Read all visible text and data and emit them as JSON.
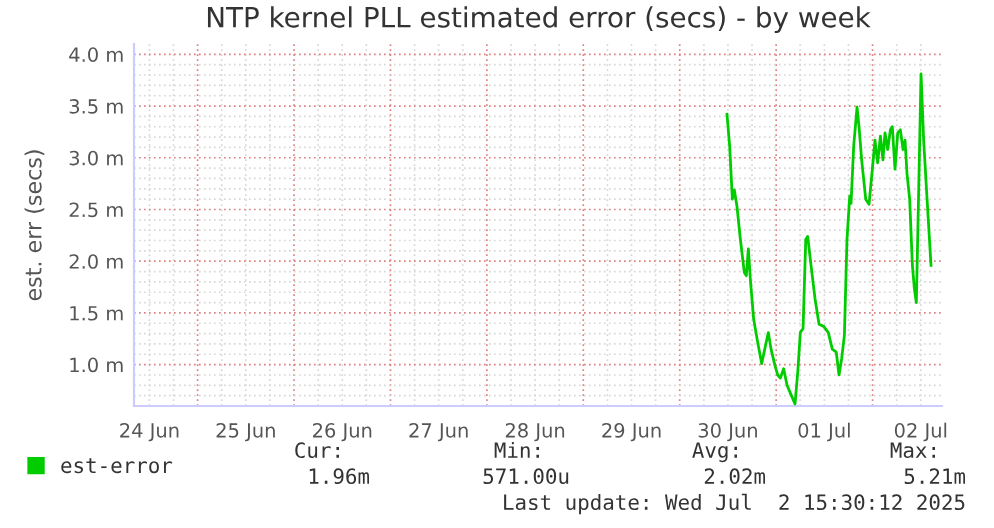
{
  "chart_data": {
    "type": "line",
    "title": "NTP kernel PLL estimated error (secs) - by week",
    "ylabel": "est. err (secs)",
    "xlim": [
      "2025-06-24T08:10",
      "2025-07-02T17:17"
    ],
    "ylim": [
      0.6,
      4.1
    ],
    "xticks": [
      {
        "value": "2025-06-24T12:00",
        "label": "24 Jun"
      },
      {
        "value": "2025-06-25T12:00",
        "label": "25 Jun"
      },
      {
        "value": "2025-06-26T12:00",
        "label": "26 Jun"
      },
      {
        "value": "2025-06-27T12:00",
        "label": "27 Jun"
      },
      {
        "value": "2025-06-28T12:00",
        "label": "28 Jun"
      },
      {
        "value": "2025-06-29T12:00",
        "label": "29 Jun"
      },
      {
        "value": "2025-06-30T12:00",
        "label": "30 Jun"
      },
      {
        "value": "2025-07-01T12:00",
        "label": "01 Jul"
      },
      {
        "value": "2025-07-02T12:00",
        "label": "02 Jul"
      }
    ],
    "yticks": [
      {
        "value": 1.0,
        "label": "1.0 m"
      },
      {
        "value": 1.5,
        "label": "1.5 m"
      },
      {
        "value": 2.0,
        "label": "2.0 m"
      },
      {
        "value": 2.5,
        "label": "2.5 m"
      },
      {
        "value": 3.0,
        "label": "3.0 m"
      },
      {
        "value": 3.5,
        "label": "3.5 m"
      },
      {
        "value": 4.0,
        "label": "4.0 m"
      }
    ],
    "grid": true,
    "legend": "bottom left",
    "marker": "none",
    "line_style": "solid",
    "series": [
      {
        "name": "est-error",
        "color": "#00cc00",
        "x": [
          "2025-06-30T11:46",
          "2025-06-30T12:26",
          "2025-06-30T13:06",
          "2025-06-30T13:35",
          "2025-06-30T14:15",
          "2025-06-30T15:06",
          "2025-06-30T16:05",
          "2025-06-30T16:35",
          "2025-06-30T17:05",
          "2025-06-30T17:34",
          "2025-06-30T18:24",
          "2025-06-30T19:23",
          "2025-06-30T20:24",
          "2025-06-30T21:23",
          "2025-06-30T22:03",
          "2025-06-30T22:44",
          "2025-06-30T23:43",
          "2025-07-01T00:23",
          "2025-07-01T01:03",
          "2025-07-01T01:52",
          "2025-07-01T02:43",
          "2025-07-01T03:42",
          "2025-07-01T04:42",
          "2025-07-01T05:23",
          "2025-07-01T06:01",
          "2025-07-01T06:42",
          "2025-07-01T07:22",
          "2025-07-01T07:51",
          "2025-07-01T08:41",
          "2025-07-01T09:40",
          "2025-07-01T10:41",
          "2025-07-01T11:50",
          "2025-07-01T12:59",
          "2025-07-01T13:59",
          "2025-07-01T14:58",
          "2025-07-01T15:39",
          "2025-07-01T16:19",
          "2025-07-01T16:59",
          "2025-07-01T17:38",
          "2025-07-01T18:19",
          "2025-07-01T18:39",
          "2025-07-01T19:18",
          "2025-07-01T20:08",
          "2025-07-01T20:38",
          "2025-07-01T21:17",
          "2025-07-01T22:18",
          "2025-07-01T23:07",
          "2025-07-01T23:57",
          "2025-07-02T00:36",
          "2025-07-02T01:16",
          "2025-07-02T01:57",
          "2025-07-02T02:35",
          "2025-07-02T03:06",
          "2025-07-02T03:46",
          "2025-07-02T04:26",
          "2025-07-02T04:55",
          "2025-07-02T05:35",
          "2025-07-02T06:16",
          "2025-07-02T06:55",
          "2025-07-02T07:35",
          "2025-07-02T08:05",
          "2025-07-02T08:34",
          "2025-07-02T09:14",
          "2025-07-02T09:55",
          "2025-07-02T10:25",
          "2025-07-02T10:54",
          "2025-07-02T11:34",
          "2025-07-02T12:04",
          "2025-07-02T12:43",
          "2025-07-02T13:34",
          "2025-07-02T14:33"
        ],
        "values": [
          3.42,
          3.11,
          2.6,
          2.69,
          2.53,
          2.21,
          1.89,
          1.86,
          2.12,
          1.83,
          1.44,
          1.22,
          1.01,
          1.19,
          1.31,
          1.15,
          0.99,
          0.9,
          0.87,
          0.96,
          0.8,
          0.71,
          0.62,
          0.93,
          1.31,
          1.35,
          2.21,
          2.24,
          1.96,
          1.64,
          1.39,
          1.37,
          1.31,
          1.15,
          1.12,
          0.9,
          1.06,
          1.28,
          2.21,
          2.63,
          2.56,
          3.11,
          3.49,
          3.3,
          2.98,
          2.6,
          2.55,
          2.89,
          3.17,
          2.95,
          3.21,
          2.98,
          3.24,
          3.08,
          3.27,
          3.3,
          2.89,
          3.24,
          3.27,
          3.08,
          3.17,
          2.85,
          2.6,
          1.96,
          1.73,
          1.6,
          2.85,
          3.81,
          3.17,
          2.6,
          1.96
        ]
      }
    ],
    "annotations": [
      "Cur:",
      "Min:",
      "Avg:",
      "Max:",
      "1.96m",
      "571.00u",
      "2.02m",
      "5.21m",
      "Last update: Wed Jul  2 15:30:12 2025"
    ]
  }
}
